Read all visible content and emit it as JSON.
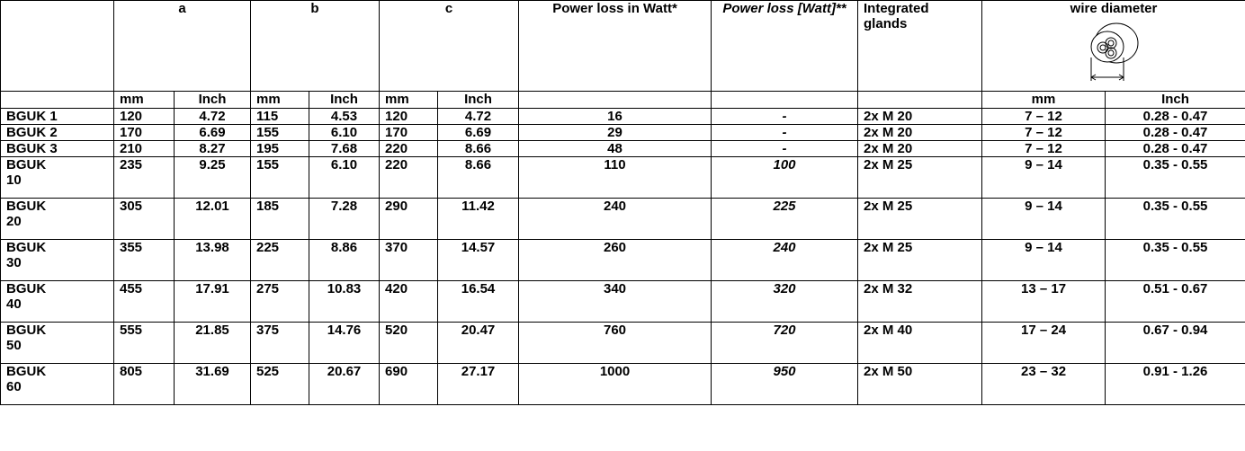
{
  "table": {
    "header": [
      "a",
      "b",
      "c",
      "Power loss in Watt*",
      "Power loss [Watt]**",
      "Integrated glands",
      "wire diameter"
    ],
    "units": [
      "mm",
      "Inch",
      "mm",
      "Inch",
      "mm",
      "Inch",
      "mm",
      "Inch"
    ],
    "rows": [
      [
        "BGUK 1",
        "120",
        "4.72",
        "115",
        "4.53",
        "120",
        "4.72",
        "16",
        "-",
        "2x M 20",
        "7 – 12",
        "0.28 - 0.47"
      ],
      [
        "BGUK 2",
        "170",
        "6.69",
        "155",
        "6.10",
        "170",
        "6.69",
        "29",
        "-",
        "2x M 20",
        "7 – 12",
        "0.28 - 0.47"
      ],
      [
        "BGUK 3",
        "210",
        "8.27",
        "195",
        "7.68",
        "220",
        "8.66",
        "48",
        "-",
        "2x M 20",
        "7 – 12",
        "0.28 - 0.47"
      ],
      [
        "BGUK 10",
        "235",
        "9.25",
        "155",
        "6.10",
        "220",
        "8.66",
        "110",
        "100",
        "2x M 25",
        "9 – 14",
        "0.35 - 0.55"
      ],
      [
        "BGUK 20",
        "305",
        "12.01",
        "185",
        "7.28",
        "290",
        "11.42",
        "240",
        "225",
        "2x M 25",
        "9 – 14",
        "0.35 - 0.55"
      ],
      [
        "BGUK 30",
        "355",
        "13.98",
        "225",
        "8.86",
        "370",
        "14.57",
        "260",
        "240",
        "2x M 25",
        "9 – 14",
        "0.35 - 0.55"
      ],
      [
        "BGUK 40",
        "455",
        "17.91",
        "275",
        "10.83",
        "420",
        "16.54",
        "340",
        "320",
        "2x M 32",
        "13 – 17",
        "0.51 - 0.67"
      ],
      [
        "BGUK 50",
        "555",
        "21.85",
        "375",
        "14.76",
        "520",
        "20.47",
        "760",
        "720",
        "2x M 40",
        "17 – 24",
        "0.67 - 0.94"
      ],
      [
        "BGUK 60",
        "805",
        "31.69",
        "525",
        "20.67",
        "690",
        "27.17",
        "1000",
        "950",
        "2x M 50",
        "23 – 32",
        "0.91 - 1.26"
      ]
    ]
  }
}
